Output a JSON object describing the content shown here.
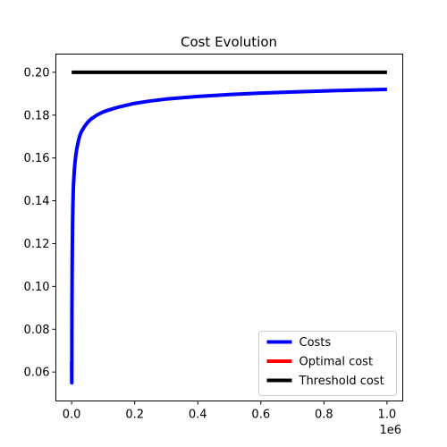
{
  "chart_data": {
    "type": "line",
    "title": "Cost Evolution",
    "xlabel": "",
    "ylabel": "",
    "x_offset_label": "1e6",
    "xlim": [
      -0.05,
      1.05
    ],
    "ylim": [
      0.0465,
      0.2085
    ],
    "x_ticks": [
      0.0,
      0.2,
      0.4,
      0.6,
      0.8,
      1.0
    ],
    "x_tick_labels": [
      "0.0",
      "0.2",
      "0.4",
      "0.6",
      "0.8",
      "1.0"
    ],
    "y_ticks": [
      0.06,
      0.08,
      0.1,
      0.12,
      0.14,
      0.16,
      0.18,
      0.2
    ],
    "y_tick_labels": [
      "0.06",
      "0.08",
      "0.10",
      "0.12",
      "0.14",
      "0.16",
      "0.18",
      "0.20"
    ],
    "grid": false,
    "legend_position": "lower-right",
    "series": [
      {
        "name": "Costs",
        "color": "#0000ff",
        "x": [
          0.0,
          0.0005,
          0.001,
          0.0015,
          0.002,
          0.003,
          0.004,
          0.005,
          0.006,
          0.008,
          0.01,
          0.013,
          0.016,
          0.02,
          0.025,
          0.03,
          0.04,
          0.05,
          0.06,
          0.07,
          0.08,
          0.1,
          0.12,
          0.15,
          0.2,
          0.25,
          0.3,
          0.4,
          0.5,
          0.6,
          0.7,
          0.8,
          0.9,
          1.0
        ],
        "y": [
          0.065,
          0.055,
          0.09,
          0.105,
          0.115,
          0.13,
          0.138,
          0.144,
          0.148,
          0.153,
          0.157,
          0.161,
          0.164,
          0.167,
          0.17,
          0.172,
          0.1745,
          0.1765,
          0.178,
          0.179,
          0.18,
          0.1815,
          0.1825,
          0.1838,
          0.1855,
          0.1866,
          0.1875,
          0.1887,
          0.1896,
          0.1903,
          0.1908,
          0.1913,
          0.1917,
          0.192
        ]
      },
      {
        "name": "Optimal cost",
        "color": "#ff0000",
        "x": [],
        "y": []
      },
      {
        "name": "Threshold cost",
        "color": "#000000",
        "x": [
          0.0,
          1.0
        ],
        "y": [
          0.2,
          0.2
        ]
      }
    ]
  }
}
